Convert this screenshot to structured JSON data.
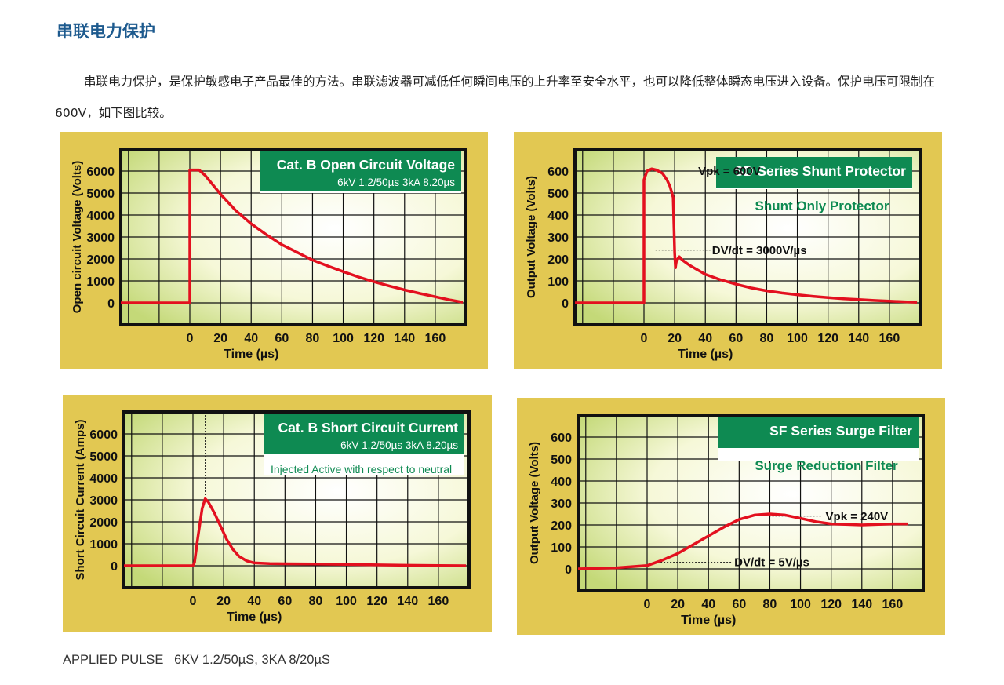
{
  "page": {
    "title": "串联电力保护",
    "intro": "串联电力保护，是保护敏感电子产品最佳的方法。串联滤波器可减低任何瞬间电压的上升率至安全水平，也可以降低整体瞬态电压进入设备。保护电压可限制在600V，如下图比较。",
    "footer": "APPLIED PULSE   6KV 1.2/50µS, 3KA 8/20µS"
  },
  "colors": {
    "title": "#1d5a8e",
    "panel_bg": "#e2c852",
    "plot_frame": "#111111",
    "curve": "#e3101f",
    "label_green": "#0e8a52",
    "grid": "#111111"
  },
  "chart_data": [
    {
      "type": "line",
      "title": "Cat. B Open Circuit Voltage",
      "subtitle": "6kV 1.2/50µs 3kA 8.20µs",
      "note": "",
      "xlabel": "Time (µs)",
      "ylabel": "Open circuit Voltage (Volts)",
      "xlim": [
        -45,
        180
      ],
      "ylim": [
        -1000,
        7000
      ],
      "x_ticks": [
        0,
        20,
        40,
        60,
        80,
        100,
        120,
        140,
        160
      ],
      "y_ticks": [
        0,
        1000,
        2000,
        3000,
        4000,
        5000,
        6000
      ],
      "grid": true,
      "annotations": [],
      "series": [
        {
          "x": [
            -45,
            0,
            0,
            6,
            10,
            20,
            30,
            40,
            50,
            60,
            70,
            80,
            90,
            100,
            110,
            120,
            130,
            140,
            150,
            160,
            170,
            178
          ],
          "y": [
            0,
            0,
            6050,
            6050,
            5800,
            4950,
            4200,
            3600,
            3100,
            2650,
            2300,
            1950,
            1680,
            1420,
            1180,
            960,
            770,
            590,
            430,
            280,
            130,
            30
          ]
        }
      ]
    },
    {
      "type": "line",
      "title": "SD Series Shunt Protector",
      "subtitle": "Shunt Only Protector",
      "note": "",
      "xlabel": "Time (µs)",
      "ylabel": "Output Voltage (Volts)",
      "xlim": [
        -45,
        180
      ],
      "ylim": [
        -100,
        700
      ],
      "x_ticks": [
        0,
        20,
        40,
        60,
        80,
        100,
        120,
        140,
        160
      ],
      "y_ticks": [
        0,
        100,
        200,
        300,
        400,
        500,
        600
      ],
      "grid": true,
      "annotations": [
        {
          "text": "Vpk = 600V",
          "x": 20,
          "y": 600
        },
        {
          "text": "DV/dt = 3000V/µs",
          "x": 28,
          "y": 240
        }
      ],
      "series": [
        {
          "x": [
            -45,
            0,
            0,
            2,
            5,
            8,
            12,
            15,
            17,
            19,
            20,
            20.5,
            21,
            22,
            23,
            25,
            30,
            35,
            40,
            50,
            60,
            70,
            80,
            90,
            100,
            110,
            120,
            130,
            140,
            150,
            160,
            170,
            178
          ],
          "y": [
            0,
            0,
            560,
            600,
            610,
            605,
            590,
            560,
            530,
            480,
            230,
            160,
            185,
            200,
            210,
            195,
            170,
            150,
            130,
            105,
            85,
            68,
            55,
            45,
            37,
            30,
            24,
            19,
            15,
            11,
            8,
            5,
            3
          ]
        }
      ]
    },
    {
      "type": "line",
      "title": "Cat. B Short Circuit Current",
      "subtitle": "6kV 1.2/50µs 3kA 8.20µs",
      "note": "Injected Active with respect to neutral",
      "xlabel": "Time (µs)",
      "ylabel": "Short Circuit Current (Amps)",
      "xlim": [
        -45,
        180
      ],
      "ylim": [
        -1000,
        7000
      ],
      "x_ticks": [
        0,
        20,
        40,
        60,
        80,
        100,
        120,
        140,
        160
      ],
      "y_ticks": [
        0,
        1000,
        2000,
        3000,
        4000,
        5000,
        6000
      ],
      "grid": true,
      "annotations": [],
      "series": [
        {
          "x": [
            -45,
            0,
            1,
            3,
            6,
            8,
            10,
            14,
            18,
            22,
            26,
            30,
            35,
            40,
            50,
            60,
            80,
            100,
            120,
            140,
            160,
            178
          ],
          "y": [
            0,
            0,
            150,
            1200,
            2600,
            3050,
            2900,
            2400,
            1800,
            1200,
            750,
            430,
            220,
            130,
            100,
            90,
            80,
            60,
            40,
            20,
            10,
            0
          ]
        }
      ]
    },
    {
      "type": "line",
      "title": "SF Series Surge Filter",
      "subtitle": "Surge Reduction Filter",
      "note": "",
      "xlabel": "Time (µs)",
      "ylabel": "Output Voltage (Volts)",
      "xlim": [
        -45,
        180
      ],
      "ylim": [
        -100,
        700
      ],
      "x_ticks": [
        0,
        20,
        40,
        60,
        80,
        100,
        120,
        140,
        160
      ],
      "y_ticks": [
        0,
        100,
        200,
        300,
        400,
        500,
        600
      ],
      "grid": true,
      "annotations": [
        {
          "text": "Vpk = 240V",
          "x": 100,
          "y": 240
        },
        {
          "text": "DV/dt = 5V/µs",
          "x": 20,
          "y": 30
        }
      ],
      "series": [
        {
          "x": [
            -45,
            -20,
            0,
            10,
            20,
            30,
            40,
            50,
            60,
            70,
            80,
            90,
            100,
            110,
            120,
            140,
            160,
            170
          ],
          "y": [
            0,
            5,
            15,
            40,
            70,
            110,
            150,
            190,
            225,
            245,
            250,
            245,
            230,
            215,
            205,
            200,
            205,
            205
          ]
        }
      ]
    }
  ]
}
